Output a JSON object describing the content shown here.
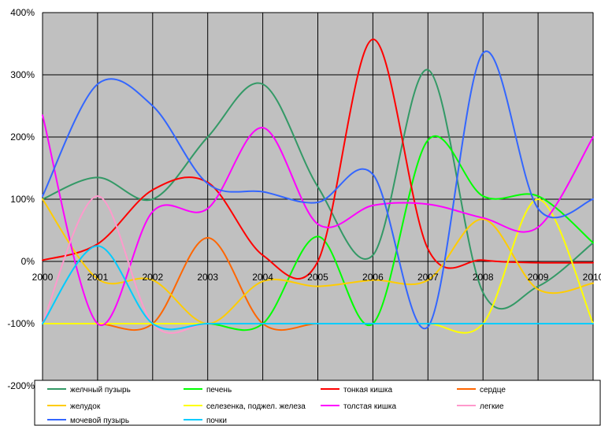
{
  "chart_data": {
    "type": "line",
    "title": "",
    "xlabel": "",
    "ylabel": "",
    "x": [
      "2000",
      "2001",
      "2002",
      "2003",
      "2004",
      "2005",
      "2006",
      "2007",
      "2008",
      "2009",
      "2010"
    ],
    "ylim": [
      -200,
      400
    ],
    "yticks": [
      -200,
      -100,
      0,
      100,
      200,
      300,
      400
    ],
    "ytick_labels": [
      "-200%",
      "-100%",
      "0%",
      "100%",
      "200%",
      "300%",
      "400%"
    ],
    "grid": true,
    "smooth": true,
    "plot_background": "#c0c0c0",
    "legend_position": "bottom",
    "series": [
      {
        "name": "желчный пузырь",
        "color": "#339966",
        "values": [
          100,
          135,
          100,
          200,
          285,
          120,
          10,
          308,
          -50,
          -40,
          30
        ]
      },
      {
        "name": "печень",
        "color": "#00ff00",
        "values": [
          -100,
          -100,
          -100,
          -100,
          -100,
          40,
          -100,
          195,
          105,
          105,
          30
        ]
      },
      {
        "name": "тонкая кишка",
        "color": "#ff0000",
        "values": [
          2,
          28,
          115,
          127,
          10,
          0,
          357,
          20,
          2,
          -2,
          -2
        ]
      },
      {
        "name": "сердце",
        "color": "#ff6600",
        "values": [
          -100,
          -100,
          -100,
          38,
          -100,
          -100,
          -100,
          -100,
          -100,
          -100,
          -100
        ]
      },
      {
        "name": "желудок",
        "color": "#ffcc00",
        "values": [
          100,
          -28,
          -30,
          -100,
          -32,
          -40,
          -30,
          -30,
          68,
          -45,
          -35
        ]
      },
      {
        "name": "селезенка, поджел. железа",
        "color": "#ffff00",
        "values": [
          -100,
          -100,
          -100,
          -100,
          -100,
          -100,
          -100,
          -100,
          -100,
          100,
          -100
        ]
      },
      {
        "name": "толстая кишка",
        "color": "#ff00ff",
        "values": [
          235,
          -100,
          80,
          85,
          215,
          60,
          90,
          92,
          70,
          55,
          200
        ]
      },
      {
        "name": "легкие",
        "color": "#ff99cc",
        "values": [
          -100,
          105,
          -100,
          -100,
          -100,
          -100,
          -100,
          -100,
          -100,
          -100,
          -100
        ]
      },
      {
        "name": "мочевой пузырь",
        "color": "#3366ff",
        "values": [
          105,
          285,
          250,
          125,
          112,
          95,
          140,
          -105,
          335,
          85,
          100
        ]
      },
      {
        "name": "почки",
        "color": "#00ccff",
        "values": [
          -100,
          25,
          -100,
          -100,
          -100,
          -100,
          -100,
          -100,
          -100,
          -100,
          -100
        ]
      }
    ]
  }
}
